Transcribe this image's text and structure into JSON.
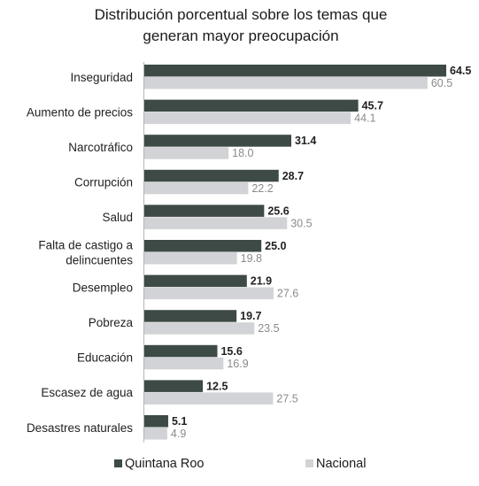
{
  "chart_data": {
    "type": "bar",
    "orientation": "horizontal",
    "title_lines": [
      "Distribución porcentual sobre los temas que",
      "generan mayor preocupación"
    ],
    "categories": [
      [
        "Inseguridad"
      ],
      [
        "Aumento de precios"
      ],
      [
        "Narcotráfico"
      ],
      [
        "Corrupción"
      ],
      [
        "Salud"
      ],
      [
        "Falta de castigo a",
        "delincuentes"
      ],
      [
        "Desempleo"
      ],
      [
        "Pobreza"
      ],
      [
        "Educación"
      ],
      [
        "Escasez de agua"
      ],
      [
        "Desastres naturales"
      ]
    ],
    "series": [
      {
        "name": "Quintana Roo",
        "color": "#3d4a45",
        "label_color": "#222222",
        "values": [
          64.5,
          45.7,
          31.4,
          28.7,
          25.6,
          25.0,
          21.9,
          19.7,
          15.6,
          12.5,
          5.1
        ]
      },
      {
        "name": "Nacional",
        "color": "#d2d3d6",
        "label_color": "#8a8a8a",
        "values": [
          60.5,
          44.1,
          18.0,
          22.2,
          30.5,
          19.8,
          27.6,
          23.5,
          16.9,
          27.5,
          4.9
        ]
      }
    ],
    "xlim": [
      0,
      64.5
    ],
    "grid": false,
    "legend_position": "bottom",
    "value_labels": true
  }
}
